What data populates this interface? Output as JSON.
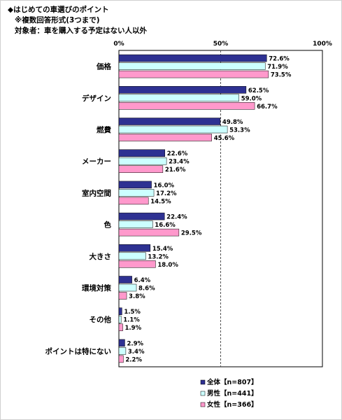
{
  "title_lines": [
    "◆はじめての車選びのポイント",
    "※複数回答形式(3つまで)",
    "対象者：車を購入する予定はない人以外"
  ],
  "chart_data": {
    "type": "bar",
    "orientation": "horizontal",
    "title": "はじめての車選びのポイント",
    "xlim": [
      0,
      100
    ],
    "x_ticks": [
      "0%",
      "50%",
      "100%"
    ],
    "grid": "dashed vertical line at 50%",
    "legend_placement": "bottom",
    "categories": [
      "価格",
      "デザイン",
      "燃費",
      "メーカー",
      "室内空間",
      "色",
      "大きさ",
      "環境対策",
      "その他",
      "ポイントは特にない"
    ],
    "series": [
      {
        "name": "全体【n=807】",
        "color": "#2e3192",
        "values": [
          72.6,
          62.5,
          49.8,
          22.6,
          16.0,
          22.4,
          15.4,
          6.4,
          1.5,
          2.9
        ],
        "labels": [
          "72.6%",
          "62.5%",
          "49.8%",
          "22.6%",
          "16.0%",
          "22.4%",
          "15.4%",
          "6.4%",
          "1.5%",
          "2.9%"
        ]
      },
      {
        "name": "男性【n=441】",
        "color": "#ccffff",
        "values": [
          71.9,
          59.0,
          53.3,
          23.4,
          17.2,
          16.6,
          13.2,
          8.6,
          1.1,
          3.4
        ],
        "labels": [
          "71.9%",
          "59.0%",
          "53.3%",
          "23.4%",
          "17.2%",
          "16.6%",
          "13.2%",
          "8.6%",
          "1.1%",
          "3.4%"
        ]
      },
      {
        "name": "女性【n=366】",
        "color": "#ff99cc",
        "values": [
          73.5,
          66.7,
          45.6,
          21.6,
          14.5,
          29.5,
          18.0,
          3.8,
          1.9,
          2.2
        ],
        "labels": [
          "73.5%",
          "66.7%",
          "45.6%",
          "21.6%",
          "14.5%",
          "29.5%",
          "18.0%",
          "3.8%",
          "1.9%",
          "2.2%"
        ]
      }
    ]
  }
}
